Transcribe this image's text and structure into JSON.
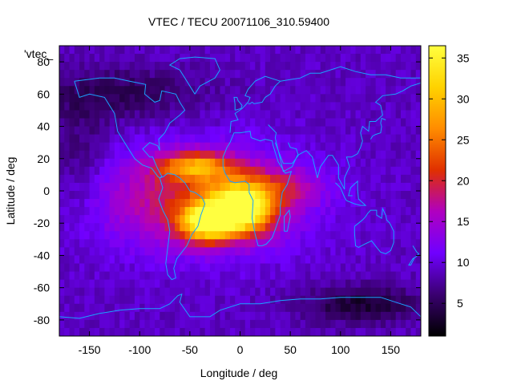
{
  "chart_data": {
    "type": "heatmap",
    "title": "VTEC / TECU 20071106_310.59400",
    "xlabel": "Longitude / deg",
    "ylabel": "Latitude / deg",
    "xlim": [
      -180,
      180
    ],
    "ylim": [
      -90,
      90
    ],
    "x_ticks": [
      -150,
      -100,
      -50,
      0,
      50,
      100,
      150
    ],
    "y_ticks": [
      -80,
      -60,
      -40,
      -20,
      0,
      20,
      40,
      60,
      80
    ],
    "x_tick_labels": [
      "-150",
      "-100",
      "-50",
      "0",
      "50",
      "100",
      "150"
    ],
    "y_tick_labels": [
      "-80",
      "-60",
      "-40",
      "-20",
      "0",
      "20",
      "40",
      "60",
      "80"
    ],
    "legend_key": "'vtec_",
    "colorbar": {
      "range": [
        1,
        36.5
      ],
      "ticks": [
        5,
        10,
        15,
        20,
        25,
        30,
        35
      ],
      "tick_labels": [
        "5",
        "10",
        "15",
        "20",
        "25",
        "30",
        "35"
      ]
    },
    "cell_size_deg": [
      5,
      5
    ],
    "background_value": 9,
    "features": [
      {
        "name": "main-crest-africa",
        "lon": 0,
        "lat": -12,
        "sigma_lon": 22,
        "sigma_lat": 10,
        "amplitude": 26
      },
      {
        "name": "south-america-crest",
        "lon": -35,
        "lat": -20,
        "sigma_lon": 18,
        "sigma_lat": 8,
        "amplitude": 20
      },
      {
        "name": "northern-crest",
        "lon": -45,
        "lat": 15,
        "sigma_lon": 25,
        "sigma_lat": 6,
        "amplitude": 14
      },
      {
        "name": "equatorial-anomaly",
        "lon": -40,
        "lat": -5,
        "sigma_lon": 70,
        "sigma_lat": 22,
        "amplitude": 11
      },
      {
        "name": "atlantic-extension",
        "lon": 30,
        "lat": 2,
        "sigma_lon": 35,
        "sigma_lat": 8,
        "amplitude": 6
      },
      {
        "name": "north-polar-depletion",
        "lon": -120,
        "lat": 60,
        "sigma_lon": 60,
        "sigma_lat": 12,
        "amplitude": -4
      },
      {
        "name": "south-pacific-depletion",
        "lon": 120,
        "lat": -70,
        "sigma_lon": 40,
        "sigma_lat": 8,
        "amplitude": -6
      },
      {
        "name": "eastern-pacific-depletion",
        "lon": -160,
        "lat": 20,
        "sigma_lon": 20,
        "sigma_lat": 25,
        "amplitude": -3
      }
    ]
  },
  "colors": {
    "coastline": "#1aa3ff",
    "colormap": [
      "#000000",
      "#3a0070",
      "#7000ff",
      "#b000c0",
      "#e03000",
      "#ff8c00",
      "#ffd200",
      "#ffff40"
    ]
  }
}
